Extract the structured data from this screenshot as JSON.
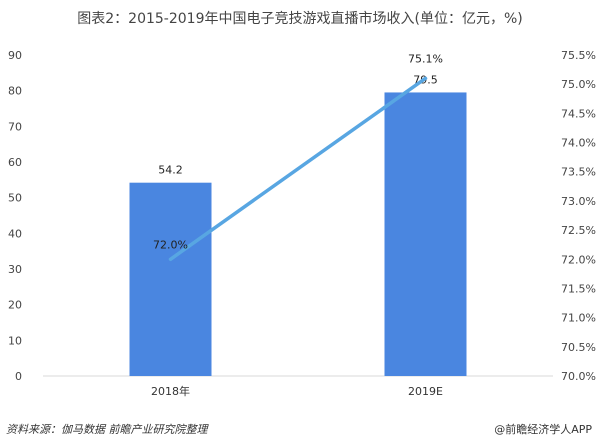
{
  "title": "图表2：2015-2019年中国电子竞技游戏直播市场收入(单位：亿元，%)",
  "footer": {
    "source": "资料来源：伽马数据 前瞻产业研究院整理",
    "brand": "@前瞻经济学人APP"
  },
  "colors": {
    "bar": "#4a86e0",
    "line": "#58a6e2",
    "grid": "#d9d9d9"
  },
  "chart_data": {
    "type": "bar",
    "title": "图表2：2015-2019年中国电子竞技游戏直播市场收入(单位：亿元，%)",
    "categories": [
      "2018年",
      "2019E"
    ],
    "series": [
      {
        "type": "bar",
        "axis": "left",
        "values": [
          54.2,
          79.5
        ],
        "value_labels": [
          "54.2",
          "79.5"
        ]
      },
      {
        "type": "line",
        "axis": "right",
        "values": [
          72.0,
          75.1
        ],
        "value_labels": [
          "72.0%",
          "75.1%"
        ]
      }
    ],
    "ylim_left": [
      0,
      90
    ],
    "yticks_left": [
      "0",
      "10",
      "20",
      "30",
      "40",
      "50",
      "60",
      "70",
      "80",
      "90"
    ],
    "ylim_right": [
      70.0,
      75.5
    ],
    "yticks_right": [
      "70.0%",
      "70.5%",
      "71.0%",
      "71.5%",
      "72.0%",
      "72.5%",
      "73.0%",
      "73.5%",
      "74.0%",
      "74.5%",
      "75.0%",
      "75.5%"
    ],
    "grid": false,
    "legend": "none"
  }
}
